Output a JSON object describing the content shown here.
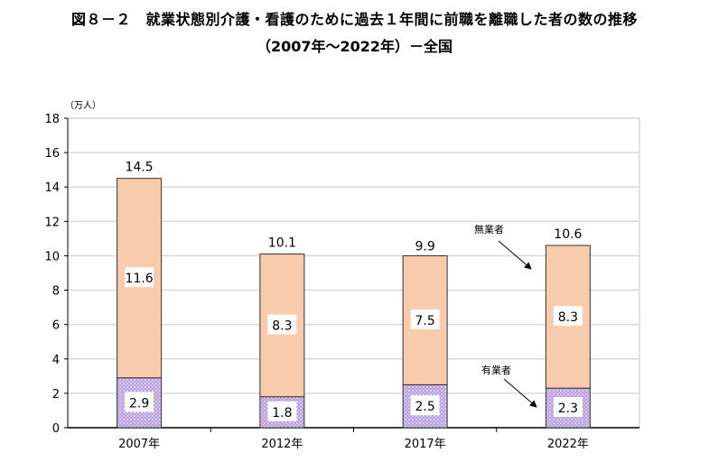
{
  "title": "図８－２　就業状態別介護・看護のために過去１年間に前職を離職した者の数の推移",
  "subtitle": "（2007年～2022年）－全国",
  "chart_data": {
    "type": "bar",
    "stacked": true,
    "ylabel": "（万人）",
    "ylim": [
      0,
      18
    ],
    "yticks": [
      0,
      2,
      4,
      6,
      8,
      10,
      12,
      14,
      16,
      18
    ],
    "grid": true,
    "categories": [
      "2007年",
      "2012年",
      "2017年",
      "2022年"
    ],
    "series": [
      {
        "name": "有業者",
        "values": [
          2.9,
          1.8,
          2.5,
          2.3
        ],
        "color": "#b9a0de"
      },
      {
        "name": "無業者",
        "values": [
          11.6,
          8.3,
          7.5,
          8.3
        ],
        "color": "#f8cbad"
      }
    ],
    "totals": [
      14.5,
      10.1,
      9.9,
      10.6
    ],
    "value_labels": {
      "employed": [
        "2.9",
        "1.8",
        "2.5",
        "2.3"
      ],
      "unemployed": [
        "11.6",
        "8.3",
        "7.5",
        "8.3"
      ],
      "totals": [
        "14.5",
        "10.1",
        "9.9",
        "10.6"
      ]
    },
    "annotations": [
      "無業者",
      "有業者"
    ]
  }
}
